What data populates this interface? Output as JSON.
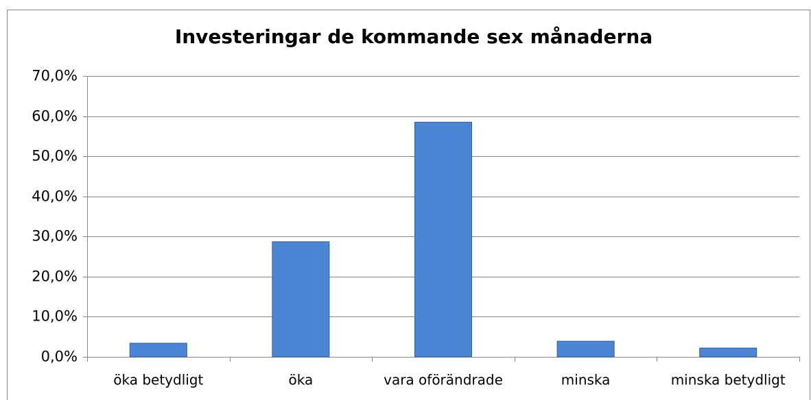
{
  "chart_data": {
    "type": "bar",
    "title": "Investeringar de kommande sex månaderna",
    "categories": [
      "öka betydligt",
      "öka",
      "vara oförändrade",
      "minska",
      "minska betydligt"
    ],
    "values": [
      3.4,
      28.7,
      58.5,
      3.9,
      2.2
    ],
    "color": "#4a86d4",
    "ylim": [
      0,
      70
    ],
    "yticks": [
      {
        "value": 0,
        "label": "0,0%"
      },
      {
        "value": 10,
        "label": "10,0%"
      },
      {
        "value": 20,
        "label": "20,0%"
      },
      {
        "value": 30,
        "label": "30,0%"
      },
      {
        "value": 40,
        "label": "40,0%"
      },
      {
        "value": 50,
        "label": "50,0%"
      },
      {
        "value": 60,
        "label": "60,0%"
      },
      {
        "value": 70,
        "label": "70,0%"
      }
    ],
    "grid": true
  }
}
